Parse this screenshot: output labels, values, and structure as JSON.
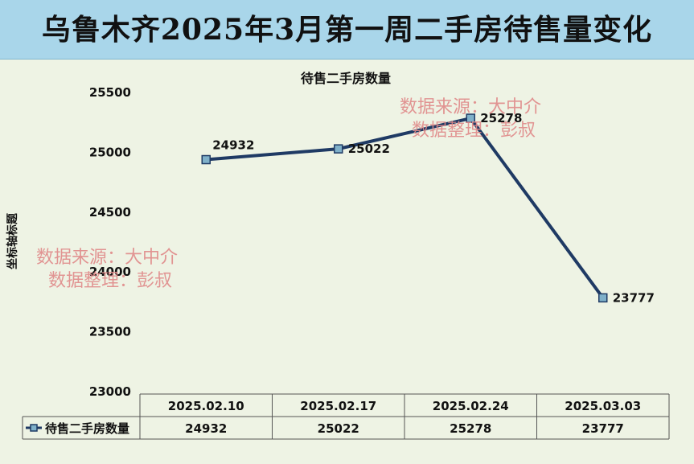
{
  "banner_title": "乌鲁木齐2025年3月第一周二手房待售量变化",
  "watermark": {
    "line1": "数据来源：大中介",
    "line2": "数据整理：彭叔"
  },
  "colors": {
    "banner_bg": "#a9d6ea",
    "plot_bg": "#eef3e4",
    "line": "#1f3a64",
    "marker": "#7fb0c9",
    "watermark": "#e08a8a"
  },
  "chart_data": {
    "type": "line",
    "title": "待售二手房数量",
    "ylabel": "坐标轴标题",
    "xlabel": "",
    "ylim": [
      23000,
      25500
    ],
    "yticks": [
      23000,
      23500,
      24000,
      24500,
      25000,
      25500
    ],
    "categories": [
      "2025.02.10",
      "2025.02.17",
      "2025.02.24",
      "2025.03.03"
    ],
    "series": [
      {
        "name": "待售二手房数量",
        "values": [
          24932,
          25022,
          25278,
          23777
        ]
      }
    ],
    "data_labels": true,
    "grid": false,
    "legend": "data-table"
  }
}
